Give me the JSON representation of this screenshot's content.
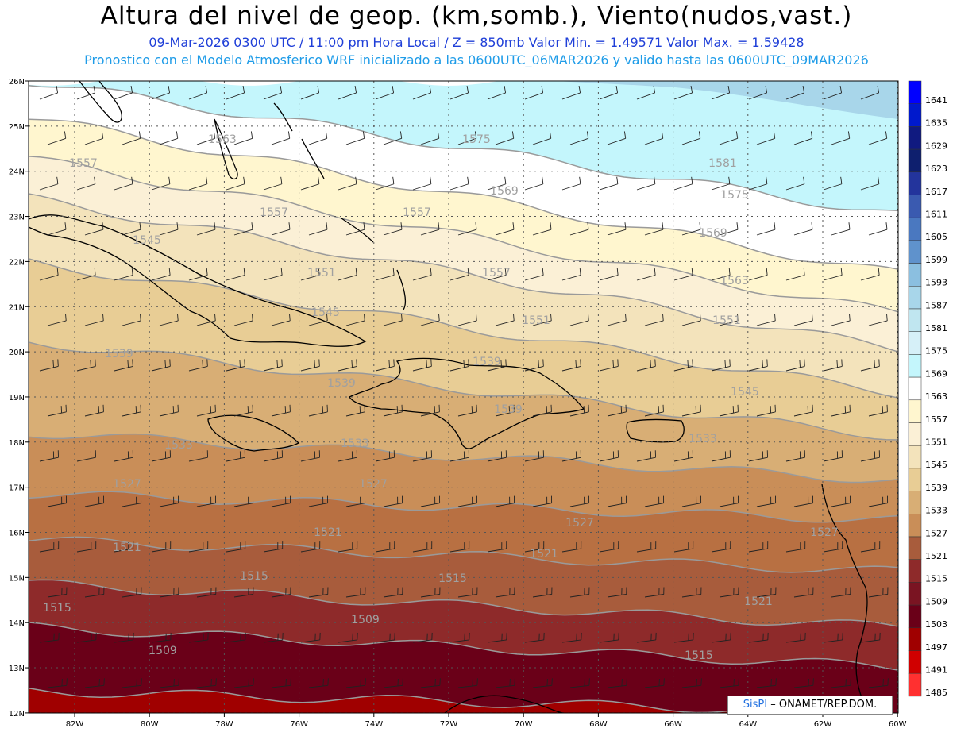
{
  "title": "Altura del nivel de geop. (km,somb.), Viento(nudos,vast.)",
  "subtitle_line1": "09-Mar-2026  0300 UTC / 11:00 pm Hora Local / Z = 850mb    Valor Min. = 1.49571   Valor Max. = 1.59428",
  "subtitle_line2": "Pronostico con el Modelo Atmosferico WRF inicializado a las 0600UTC_06MAR2026 y valido hasta las  0600UTC_09MAR2026",
  "credit": {
    "brand": "SisPI",
    "text": "– ONAMET/REP.DOM."
  },
  "axes": {
    "lat_labels": [
      "26N",
      "25N",
      "24N",
      "23N",
      "22N",
      "21N",
      "20N",
      "19N",
      "18N",
      "17N",
      "16N",
      "15N",
      "14N",
      "13N",
      "12N"
    ],
    "lon_labels": [
      "82W",
      "80W",
      "78W",
      "76W",
      "74W",
      "72W",
      "70W",
      "68W",
      "66W",
      "64W",
      "62W",
      "60W"
    ]
  },
  "colorbar": {
    "levels": [
      "1641",
      "1635",
      "1629",
      "1623",
      "1617",
      "1611",
      "1605",
      "1599",
      "1593",
      "1587",
      "1581",
      "1575",
      "1569",
      "1563",
      "1557",
      "1551",
      "1545",
      "1539",
      "1533",
      "1527",
      "1521",
      "1515",
      "1509",
      "1503",
      "1497",
      "1491",
      "1485"
    ],
    "colors": [
      "#0000ff",
      "#0019cc",
      "#101a80",
      "#0e1f6e",
      "#23349c",
      "#3a5ab0",
      "#4a78c0",
      "#5f92cc",
      "#8bbfe0",
      "#a8d6ea",
      "#c0e6f0",
      "#d6f0f8",
      "#c4f6fc",
      "#ffffff",
      "#fff6cf",
      "#fbf0d6",
      "#f3e3bb",
      "#e8cd95",
      "#d8ae75",
      "#c98e58",
      "#a85c3c",
      "#8e2a2a",
      "#7a1422",
      "#6a0018",
      "#a00000",
      "#d00000",
      "#ff3030"
    ]
  },
  "bands": [
    {
      "level": "1575",
      "color": "#c4f6fc"
    },
    {
      "level": "1569",
      "color": "#ffffff"
    },
    {
      "level": "1563",
      "color": "#fff6cf"
    },
    {
      "level": "1557",
      "color": "#fbf0d6"
    },
    {
      "level": "1551",
      "color": "#f3e3bb"
    },
    {
      "level": "1545",
      "color": "#e8cd95"
    },
    {
      "level": "1539",
      "color": "#d8ae75"
    },
    {
      "level": "1533",
      "color": "#c98e58"
    },
    {
      "level": "1527",
      "color": "#b87042"
    },
    {
      "level": "1521",
      "color": "#a85c3c"
    },
    {
      "level": "1515",
      "color": "#8e2a2a"
    },
    {
      "level": "1509",
      "color": "#6a0018"
    },
    {
      "level": "1503",
      "color": "#a00000"
    }
  ],
  "contour_labels": [
    "1575",
    "1581",
    "1575",
    "1569",
    "1569",
    "1563",
    "1563",
    "1557",
    "1557",
    "1557",
    "1557",
    "1551",
    "1551",
    "1551",
    "1545",
    "1545",
    "1545",
    "1539",
    "1539",
    "1539",
    "1539",
    "1533",
    "1533",
    "1533",
    "1527",
    "1527",
    "1527",
    "1527",
    "1521",
    "1521",
    "1521",
    "1521",
    "1515",
    "1515",
    "1515",
    "1515",
    "1509",
    "1509"
  ]
}
